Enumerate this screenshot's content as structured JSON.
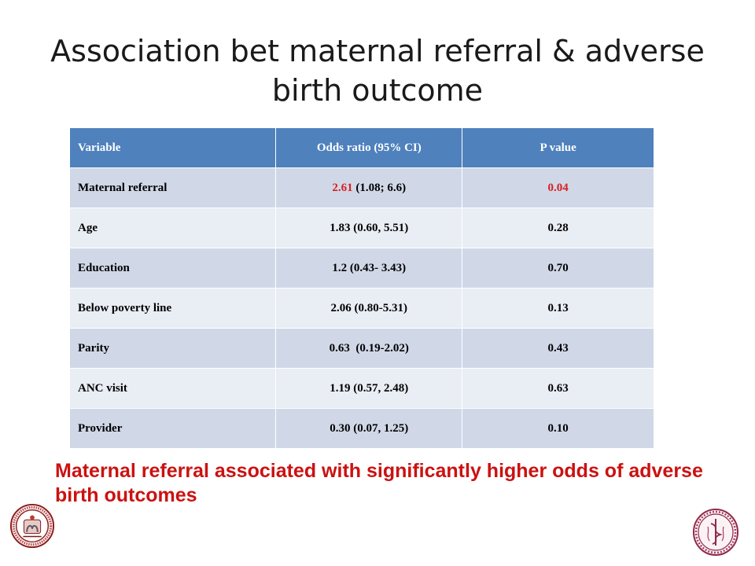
{
  "slide": {
    "title": "Association bet maternal referral & adverse birth outcome",
    "conclusion": "Maternal referral associated with significantly higher odds of adverse birth outcomes"
  },
  "table": {
    "headers": [
      "Variable",
      "Odds ratio (95% CI)",
      "P value"
    ],
    "rows": [
      {
        "variable": "Maternal referral",
        "or_value": "2.61",
        "or_ci": " (1.08; 6.6)",
        "p": "0.04"
      },
      {
        "variable": "Age",
        "or_value": "1.83",
        "or_ci": " (0.60, 5.51)",
        "p": "0.28"
      },
      {
        "variable": "Education",
        "or_value": "1.2",
        "or_ci": " (0.43- 3.43)",
        "p": "0.70"
      },
      {
        "variable": "Below poverty line",
        "or_value": "2.06",
        "or_ci": " (0.80-5.31)",
        "p": "0.13"
      },
      {
        "variable": "Parity",
        "or_value": "0.63",
        "or_ci": "  (0.19-2.02)",
        "p": "0.43"
      },
      {
        "variable": "ANC visit",
        "or_value": "1.19",
        "or_ci": " (0.57, 2.48)",
        "p": "0.63"
      },
      {
        "variable": "Provider",
        "or_value": "0.30",
        "or_ci": " (0.07, 1.25)",
        "p": "0.10"
      }
    ]
  },
  "colors": {
    "header_bg": "#4f81bd",
    "row_dark": "#d0d8e8",
    "row_light": "#e9edf4",
    "highlight": "#d62020",
    "conclusion": "#cc1111"
  },
  "logos": {
    "left": "medical-college-seal-icon",
    "right": "karolinska-institutet-seal-icon"
  }
}
